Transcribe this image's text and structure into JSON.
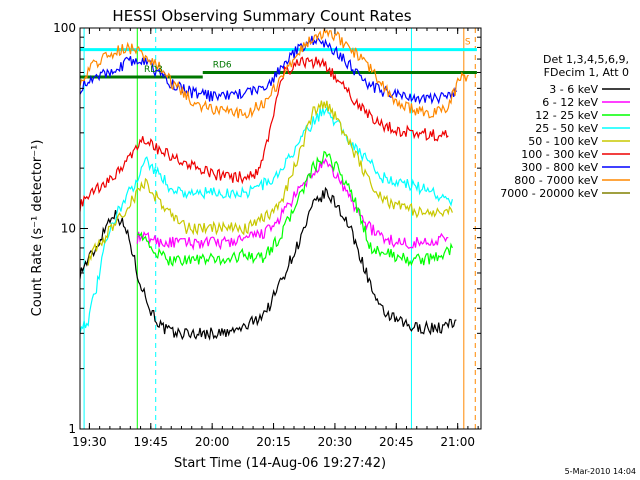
{
  "chart_data": {
    "type": "line",
    "title": "HESSI Observing Summary Count Rates",
    "xlabel": "Start Time (14-Aug-06 19:27:42)",
    "ylabel": "Count Rate (s⁻¹ detector⁻¹)",
    "xlim_min": [
      0,
      98
    ],
    "ylim": [
      1,
      100
    ],
    "yscale": "log",
    "xticks": [
      {
        "label": "19:30",
        "t": 2.3
      },
      {
        "label": "19:45",
        "t": 17.3
      },
      {
        "label": "20:00",
        "t": 32.3
      },
      {
        "label": "20:15",
        "t": 47.3
      },
      {
        "label": "20:30",
        "t": 62.3
      },
      {
        "label": "20:45",
        "t": 77.3
      },
      {
        "label": "21:00",
        "t": 92.3
      }
    ],
    "yticks": [
      {
        "label": "1",
        "v": 1
      },
      {
        "label": "10",
        "v": 10
      },
      {
        "label": "100",
        "v": 100
      }
    ],
    "legend": {
      "placement": "right",
      "header": [
        "Det 1,3,4,5,6,9,",
        "FDecim 1, Att 0"
      ],
      "entries": [
        {
          "label": "3 - 6 keV",
          "color": "#000000"
        },
        {
          "label": "6 - 12 keV",
          "color": "#ff00ff"
        },
        {
          "label": "12 - 25 keV",
          "color": "#00ff00"
        },
        {
          "label": "25 - 50 keV",
          "color": "#00ffff"
        },
        {
          "label": "50 - 100 keV",
          "color": "#c8c800"
        },
        {
          "label": "100 - 300 keV",
          "color": "#ee0000"
        },
        {
          "label": "300 - 800 keV",
          "color": "#0000ff"
        },
        {
          "label": "800 - 7000 keV",
          "color": "#ff8800"
        },
        {
          "label": "7000 - 20000 keV",
          "color": "#808000"
        }
      ]
    },
    "series": [
      {
        "color": "#000000",
        "points": [
          [
            0,
            6
          ],
          [
            2,
            7
          ],
          [
            4,
            8
          ],
          [
            6,
            10
          ],
          [
            8,
            12
          ],
          [
            10,
            11
          ],
          [
            12,
            9
          ],
          [
            14,
            6
          ],
          [
            17,
            4
          ],
          [
            20,
            3.2
          ],
          [
            23,
            3
          ],
          [
            30,
            3
          ],
          [
            36,
            3
          ],
          [
            40,
            3.2
          ],
          [
            43,
            3.5
          ],
          [
            46,
            4
          ],
          [
            50,
            6
          ],
          [
            54,
            9
          ],
          [
            57,
            13
          ],
          [
            60,
            15
          ],
          [
            63,
            13
          ],
          [
            66,
            10
          ],
          [
            70,
            6
          ],
          [
            73,
            4
          ],
          [
            77,
            3.5
          ],
          [
            81,
            3.2
          ],
          [
            85,
            3.2
          ],
          [
            89,
            3.2
          ],
          [
            92,
            3.5
          ]
        ]
      },
      {
        "color": "#ff00ff",
        "points": [
          [
            14,
            9
          ],
          [
            17,
            9
          ],
          [
            20,
            8.5
          ],
          [
            24,
            8.5
          ],
          [
            30,
            8.5
          ],
          [
            36,
            8.5
          ],
          [
            42,
            9
          ],
          [
            47,
            10
          ],
          [
            52,
            14
          ],
          [
            57,
            19
          ],
          [
            60,
            21
          ],
          [
            63,
            18
          ],
          [
            67,
            13
          ],
          [
            71,
            10
          ],
          [
            74,
            9
          ],
          [
            78,
            8.5
          ],
          [
            84,
            8.5
          ],
          [
            89,
            9
          ],
          [
            90,
            9
          ]
        ]
      },
      {
        "color": "#00ff00",
        "points": [
          [
            14,
            10
          ],
          [
            17,
            8
          ],
          [
            21,
            7
          ],
          [
            26,
            7
          ],
          [
            31,
            7
          ],
          [
            36,
            7
          ],
          [
            41,
            7.5
          ],
          [
            44,
            7
          ],
          [
            47,
            8
          ],
          [
            50,
            10
          ],
          [
            54,
            15
          ],
          [
            57,
            20
          ],
          [
            60,
            23
          ],
          [
            63,
            20
          ],
          [
            67,
            14
          ],
          [
            71,
            8
          ],
          [
            75,
            7.5
          ],
          [
            80,
            7
          ],
          [
            85,
            7
          ],
          [
            89,
            7.5
          ],
          [
            91,
            8
          ]
        ]
      },
      {
        "color": "#00ffff",
        "points": [
          [
            0,
            3.2
          ],
          [
            2,
            3.5
          ],
          [
            4,
            5
          ],
          [
            6,
            8
          ],
          [
            9,
            12
          ],
          [
            12,
            15
          ],
          [
            14,
            18
          ],
          [
            16,
            22
          ],
          [
            19,
            19
          ],
          [
            22,
            16
          ],
          [
            26,
            15
          ],
          [
            31,
            15
          ],
          [
            36,
            15
          ],
          [
            40,
            15
          ],
          [
            43,
            16
          ],
          [
            46,
            17
          ],
          [
            49,
            19
          ],
          [
            53,
            26
          ],
          [
            57,
            34
          ],
          [
            60,
            40
          ],
          [
            63,
            33
          ],
          [
            67,
            26
          ],
          [
            71,
            21
          ],
          [
            74,
            18
          ],
          [
            78,
            17
          ],
          [
            83,
            16
          ],
          [
            87,
            15
          ],
          [
            89,
            14
          ],
          [
            91,
            14
          ]
        ]
      },
      {
        "color": "#c8c800",
        "points": [
          [
            2,
            7
          ],
          [
            4,
            8
          ],
          [
            6,
            9
          ],
          [
            9,
            11
          ],
          [
            12,
            13
          ],
          [
            14,
            15
          ],
          [
            16,
            17
          ],
          [
            19,
            14
          ],
          [
            22,
            12
          ],
          [
            26,
            10
          ],
          [
            31,
            10
          ],
          [
            36,
            10
          ],
          [
            41,
            10
          ],
          [
            44,
            11
          ],
          [
            47,
            12
          ],
          [
            50,
            15
          ],
          [
            54,
            25
          ],
          [
            57,
            38
          ],
          [
            60,
            42
          ],
          [
            63,
            35
          ],
          [
            67,
            24
          ],
          [
            71,
            17
          ],
          [
            74,
            14
          ],
          [
            78,
            13
          ],
          [
            83,
            12
          ],
          [
            87,
            12
          ],
          [
            91,
            12
          ]
        ]
      },
      {
        "color": "#ee0000",
        "points": [
          [
            0,
            13
          ],
          [
            3,
            15
          ],
          [
            7,
            17
          ],
          [
            10,
            20
          ],
          [
            14,
            25
          ],
          [
            16,
            28
          ],
          [
            19,
            25
          ],
          [
            22,
            23
          ],
          [
            26,
            21
          ],
          [
            31,
            19
          ],
          [
            36,
            18
          ],
          [
            40,
            18
          ],
          [
            43,
            19
          ],
          [
            46,
            27
          ],
          [
            48,
            45
          ],
          [
            50,
            60
          ],
          [
            54,
            68
          ],
          [
            57,
            68
          ],
          [
            60,
            65
          ],
          [
            63,
            56
          ],
          [
            67,
            44
          ],
          [
            71,
            36
          ],
          [
            74,
            33
          ],
          [
            78,
            31
          ],
          [
            83,
            30
          ],
          [
            87,
            29
          ],
          [
            90,
            29
          ]
        ]
      },
      {
        "color": "#0000ff",
        "points": [
          [
            0,
            50
          ],
          [
            3,
            55
          ],
          [
            6,
            60
          ],
          [
            9,
            63
          ],
          [
            12,
            68
          ],
          [
            14,
            70
          ],
          [
            16,
            68
          ],
          [
            19,
            60
          ],
          [
            23,
            52
          ],
          [
            27,
            48
          ],
          [
            31,
            46
          ],
          [
            36,
            46
          ],
          [
            41,
            48
          ],
          [
            45,
            50
          ],
          [
            49,
            62
          ],
          [
            53,
            78
          ],
          [
            57,
            88
          ],
          [
            60,
            85
          ],
          [
            63,
            75
          ],
          [
            67,
            62
          ],
          [
            71,
            52
          ],
          [
            74,
            48
          ],
          [
            78,
            46
          ],
          [
            83,
            44
          ],
          [
            87,
            44
          ],
          [
            90,
            46
          ],
          [
            92,
            48
          ]
        ]
      },
      {
        "color": "#ff8800",
        "points": [
          [
            0,
            55
          ],
          [
            3,
            65
          ],
          [
            6,
            72
          ],
          [
            9,
            78
          ],
          [
            12,
            80
          ],
          [
            15,
            75
          ],
          [
            19,
            65
          ],
          [
            23,
            52
          ],
          [
            27,
            44
          ],
          [
            31,
            40
          ],
          [
            36,
            38
          ],
          [
            41,
            38
          ],
          [
            45,
            42
          ],
          [
            49,
            55
          ],
          [
            53,
            75
          ],
          [
            57,
            92
          ],
          [
            60,
            96
          ],
          [
            63,
            90
          ],
          [
            67,
            76
          ],
          [
            71,
            62
          ],
          [
            74,
            52
          ],
          [
            78,
            42
          ],
          [
            83,
            38
          ],
          [
            87,
            38
          ],
          [
            90,
            40
          ],
          [
            93,
            58
          ],
          [
            95,
            58
          ]
        ]
      }
    ],
    "phase_levels": [
      {
        "color": "#00ffff",
        "label": "S",
        "label_color": "#ff8800",
        "value": 78,
        "t_start": 0,
        "t_end": 97
      },
      {
        "color": "#007700",
        "label": "RD3",
        "label_color": "#007700",
        "value": 57,
        "t_start": 0,
        "t_end": 30
      },
      {
        "color": "#007700",
        "label": "RD6",
        "label_color": "#007700",
        "value": 60,
        "t_start": 30,
        "t_end": 97
      }
    ],
    "vertical_markers": [
      {
        "t": 1.0,
        "color": "#00ffff",
        "style": "solid"
      },
      {
        "t": 14.0,
        "color": "#00ff00",
        "style": "solid"
      },
      {
        "t": 18.5,
        "color": "#00ffff",
        "style": "dashed"
      },
      {
        "t": 81.0,
        "color": "#00ffff",
        "style": "solid"
      },
      {
        "t": 93.8,
        "color": "#ff8800",
        "style": "solid"
      },
      {
        "t": 96.6,
        "color": "#ff8800",
        "style": "dashed"
      }
    ]
  },
  "footer": {
    "timestamp": "5-Mar-2010 14:04"
  }
}
